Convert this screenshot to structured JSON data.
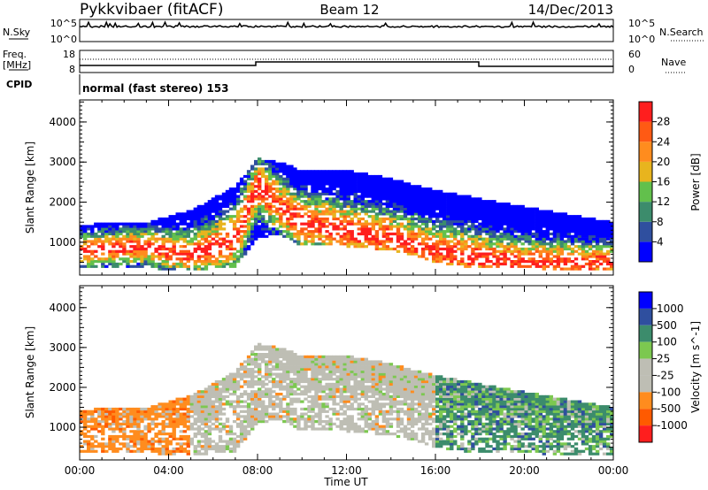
{
  "header": {
    "title": "Pykkvibaer (fitACF)",
    "beam": "Beam 12",
    "date": "14/Dec/2013"
  },
  "top_panels": {
    "nsky_label": "N.Sky",
    "nsky_ticks": [
      "10^5",
      "10^0"
    ],
    "nsearch_label": "N.Search",
    "freq_label": "Freq.",
    "freq_unit": "[MHz]",
    "freq_ticks": [
      "18",
      "8"
    ],
    "nave_label": "Nave",
    "nave_ticks": [
      "60",
      "0"
    ],
    "cpid_label": "CPID",
    "cpid_text": "normal (fast stereo) 153"
  },
  "colors": {
    "power": [
      "#0000ff",
      "#2f4f9f",
      "#3c8c6c",
      "#62c04c",
      "#e8b41e",
      "#ff8c1e",
      "#ff5a14",
      "#ff1e1e"
    ],
    "velocity": [
      "#ff1e1e",
      "#ff5a00",
      "#ff8c1e",
      "#bebeb4",
      "#bebeb4",
      "#7cc850",
      "#3c8c6c",
      "#2f4f9f",
      "#0000ff"
    ]
  },
  "chart_data": [
    {
      "type": "heatmap",
      "name": "power",
      "ylabel": "Slant Range [km]",
      "xlim": [
        "00:00",
        "24:00"
      ],
      "ylim": [
        180,
        4550
      ],
      "yticks": [
        1000,
        2000,
        3000,
        4000
      ],
      "colorbar": {
        "label": "Power [dB]",
        "ticks": [
          4,
          8,
          12,
          16,
          20,
          24,
          28
        ],
        "range": [
          0,
          32
        ]
      },
      "echo_bands_km": [
        {
          "t": "00:00",
          "low": 350,
          "high": 1450,
          "peak": 800
        },
        {
          "t": "03:00",
          "low": 350,
          "high": 1500,
          "peak": 900
        },
        {
          "t": "05:00",
          "low": 300,
          "high": 1800,
          "peak": 700
        },
        {
          "t": "07:00",
          "low": 400,
          "high": 2400,
          "peak": 1100
        },
        {
          "t": "08:00",
          "low": 1100,
          "high": 3100,
          "peak": 2400
        },
        {
          "t": "09:00",
          "low": 1200,
          "high": 3000,
          "peak": 1900
        },
        {
          "t": "10:00",
          "low": 900,
          "high": 2800,
          "peak": 1500
        },
        {
          "t": "12:00",
          "low": 900,
          "high": 2800,
          "peak": 1300
        },
        {
          "t": "14:00",
          "low": 800,
          "high": 2600,
          "peak": 1100
        },
        {
          "t": "16:00",
          "low": 500,
          "high": 2300,
          "peak": 800
        },
        {
          "t": "18:00",
          "low": 350,
          "high": 2100,
          "peak": 600
        },
        {
          "t": "20:00",
          "low": 350,
          "high": 1900,
          "peak": 500
        },
        {
          "t": "22:00",
          "low": 300,
          "high": 1700,
          "peak": 500
        },
        {
          "t": "24:00",
          "low": 300,
          "high": 1500,
          "peak": 500
        }
      ]
    },
    {
      "type": "heatmap",
      "name": "velocity",
      "ylabel": "Slant Range [km]",
      "xlabel": "Time UT",
      "xticks": [
        "00:00",
        "04:00",
        "08:00",
        "12:00",
        "16:00",
        "20:00",
        "00:00"
      ],
      "xlim": [
        "00:00",
        "24:00"
      ],
      "ylim": [
        180,
        4550
      ],
      "yticks": [
        1000,
        2000,
        3000,
        4000
      ],
      "colorbar": {
        "label": "Velocity [m s^-1]",
        "ticks": [
          1000,
          500,
          100,
          25,
          -25,
          -100,
          -500,
          -1000
        ]
      },
      "regimes": [
        {
          "from": "00:00",
          "to": "05:00",
          "velocity": "-100 to -500"
        },
        {
          "from": "05:00",
          "to": "16:00",
          "velocity": "-25 to 25"
        },
        {
          "from": "16:00",
          "to": "24:00",
          "velocity": "100 to 500"
        }
      ]
    }
  ]
}
